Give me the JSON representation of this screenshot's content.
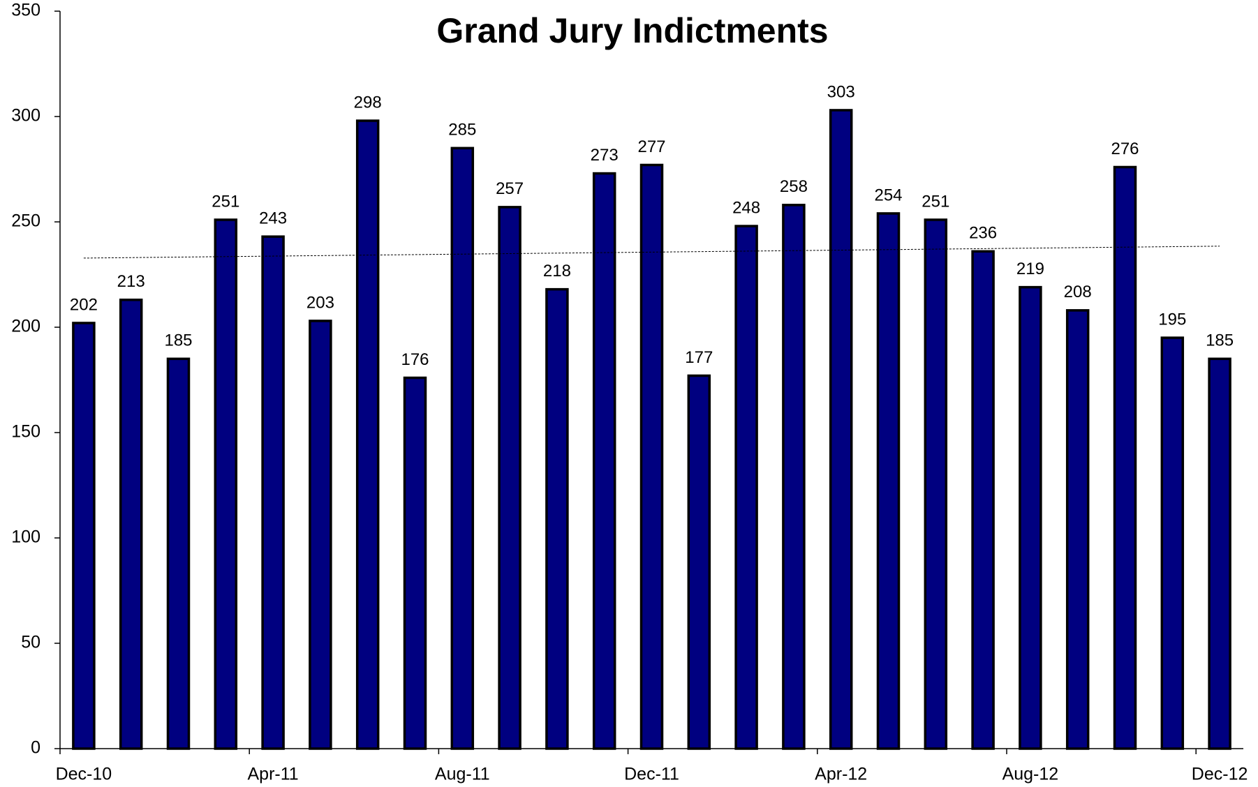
{
  "chart_data": {
    "type": "bar",
    "title": "Grand Jury Indictments",
    "categories": [
      "Dec-10",
      null,
      null,
      null,
      "Apr-11",
      null,
      null,
      null,
      "Aug-11",
      null,
      null,
      null,
      "Dec-11",
      null,
      null,
      null,
      "Apr-12",
      null,
      null,
      null,
      "Aug-12",
      null,
      null,
      null,
      "Dec-12"
    ],
    "values": [
      202,
      213,
      185,
      251,
      243,
      203,
      298,
      176,
      285,
      257,
      218,
      273,
      277,
      177,
      248,
      258,
      303,
      254,
      251,
      236,
      219,
      208,
      276,
      195,
      185
    ],
    "color": "#000080",
    "ylim": [
      0,
      350
    ],
    "yticks": [
      0,
      50,
      100,
      150,
      200,
      250,
      300,
      350
    ],
    "grid": false,
    "trendline": "linear"
  }
}
